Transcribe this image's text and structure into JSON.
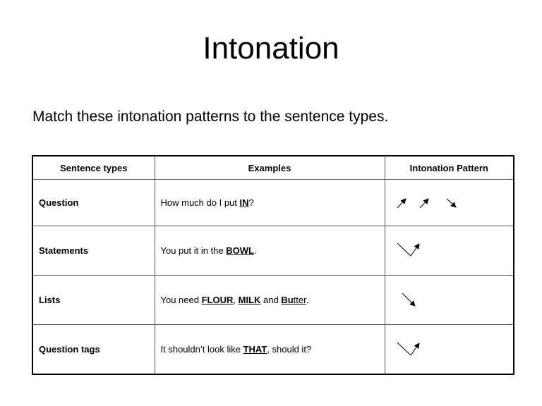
{
  "title": "Intonation",
  "instruction": "Match these intonation patterns to the sentence types.",
  "headers": [
    "Sentence types",
    "Examples",
    "Intonation Pattern"
  ],
  "rows": [
    {
      "type": "Question",
      "example": [
        "How much do I put ",
        "IN",
        "?"
      ],
      "pattern": "rise, rise, fall"
    },
    {
      "type": "Statements",
      "example": [
        "You put it in the ",
        "BOWL",
        "."
      ],
      "pattern": "fall-rise"
    },
    {
      "type": "Lists",
      "example": [
        "You need ",
        "FLOUR",
        ", ",
        "MILK",
        " and ",
        "Bu",
        "tter",
        "."
      ],
      "pattern": "fall"
    },
    {
      "type": "Question tags",
      "example": [
        "It shouldn’t look like ",
        "THAT",
        ", should it?"
      ],
      "pattern": "fall-rise"
    }
  ]
}
